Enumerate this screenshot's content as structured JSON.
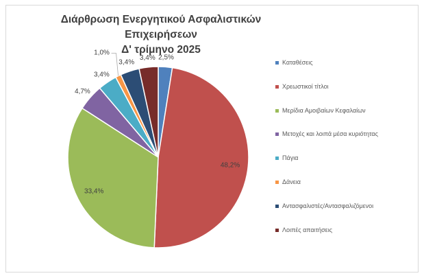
{
  "chart_data": {
    "type": "pie",
    "title": [
      "Διάρθρωση Ενεργητικού Ασφαλιστικών Επιχειρήσεων",
      "Δ' τρίμηνο 2025"
    ],
    "start_angle": "12 o'clock, clockwise",
    "legend_position": "right",
    "categories": [
      "Καταθέσεις",
      "Χρεωστικοί τίτλοι",
      "Μερίδια Αμοιβαίων Κεφαλαίων",
      "Μετοχές και λοιπά μέσα κυριότητας",
      "Πάγια",
      "Δάνεια",
      "Αντασφαλιστές/Αντασφαλιζόμενοι",
      "Λοιπές απαιτήσεις"
    ],
    "values": [
      2.5,
      48.2,
      33.4,
      4.7,
      3.4,
      1.0,
      3.4,
      3.4
    ],
    "labels": [
      "2,5%",
      "48,2%",
      "33,4%",
      "4,7%",
      "3,4%",
      "1,0%",
      "3,4%",
      "3,4%"
    ],
    "colors": [
      "#4f81bd",
      "#c0504d",
      "#9bbb59",
      "#8064a2",
      "#4bacc6",
      "#f79646",
      "#2c4d75",
      "#772c2a"
    ]
  }
}
